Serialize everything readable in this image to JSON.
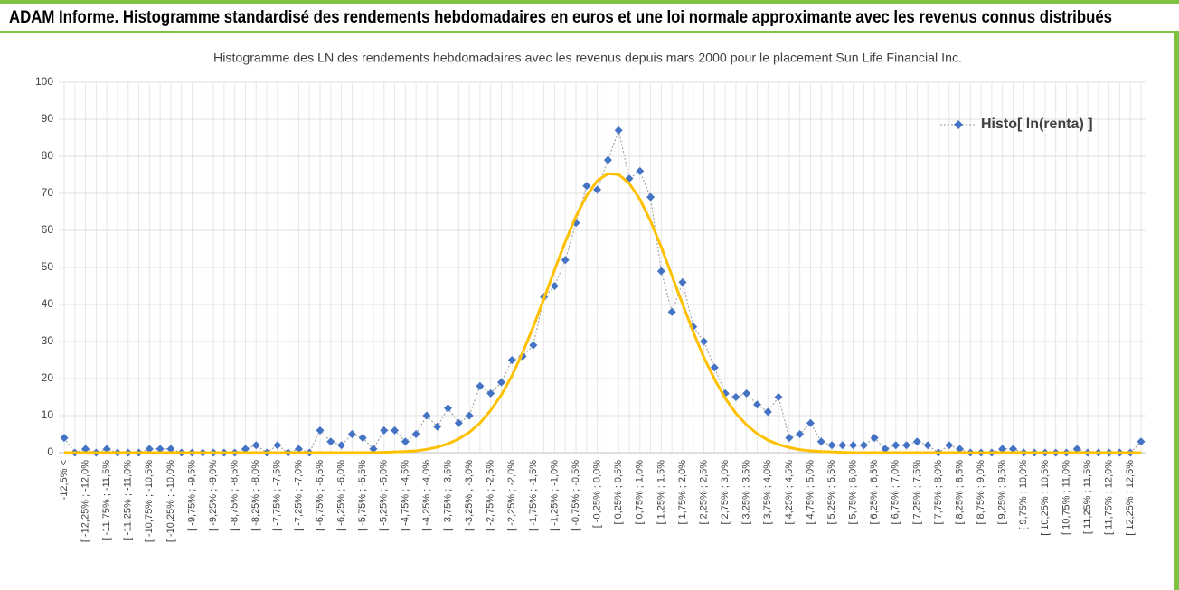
{
  "header": {
    "title": "ADAM Informe. Histogramme standardisé des rendements hebdomadaires en euros et une loi normale approximante avec les revenus connus distribués"
  },
  "chart_data": {
    "type": "line",
    "title": "Histogramme des LN des rendements hebdomadaires avec les revenus depuis mars 2000 pour le placement Sun Life Financial Inc.",
    "categories": [
      "-12,5% <",
      null,
      "[ -12,25% ; -12,0%",
      null,
      "[ -11,75% ; -11,5%",
      null,
      "[ -11,25% ; -11,0%",
      null,
      "[ -10,75% ; -10,5%",
      null,
      "[ -10,25% ; -10,0%",
      null,
      "[ -9,75% ; -9,5%",
      null,
      "[ -9,25% ; -9,0%",
      null,
      "[ -8,75% ; -8,5%",
      null,
      "[ -8,25% ; -8,0%",
      null,
      "[ -7,75% ; -7,5%",
      null,
      "[ -7,25% ; -7,0%",
      null,
      "[ -6,75% ; -6,5%",
      null,
      "[ -6,25% ; -6,0%",
      null,
      "[ -5,75% ; -5,5%",
      null,
      "[ -5,25% ; -5,0%",
      null,
      "[ -4,75% ; -4,5%",
      null,
      "[ -4,25% ; -4,0%",
      null,
      "[ -3,75% ; -3,5%",
      null,
      "[ -3,25% ; -3,0%",
      null,
      "[ -2,75% ; -2,5%",
      null,
      "[ -2,25% ; -2,0%",
      null,
      "[ -1,75% ; -1,5%",
      null,
      "[ -1,25% ; -1,0%",
      null,
      "[ -0,75% ; -0,5%",
      null,
      "[ -0,25% ; 0,0%",
      null,
      "[ 0,25% ; 0,5%",
      null,
      "[ 0,75% ; 1,0%",
      null,
      "[ 1,25% ; 1,5%",
      null,
      "[ 1,75% ; 2,0%",
      null,
      "[ 2,25% ; 2,5%",
      null,
      "[ 2,75% ; 3,0%",
      null,
      "[ 3,25% ; 3,5%",
      null,
      "[ 3,75% ; 4,0%",
      null,
      "[ 4,25% ; 4,5%",
      null,
      "[ 4,75% ; 5,0%",
      null,
      "[ 5,25% ; 5,5%",
      null,
      "[ 5,75% ; 6,0%",
      null,
      "[ 6,25% ; 6,5%",
      null,
      "[ 6,75% ; 7,0%",
      null,
      "[ 7,25% ; 7,5%",
      null,
      "[ 7,75% ; 8,0%",
      null,
      "[ 8,25% ; 8,5%",
      null,
      "[ 8,75% ; 9,0%",
      null,
      "[ 9,25% ; 9,5%",
      null,
      "[ 9,75% ; 10,0%",
      null,
      "[ 10,25% ; 10,5%",
      null,
      "[ 10,75% ; 11,0%",
      null,
      "[ 11,25% ; 11,5%",
      null,
      "[ 11,75% ; 12,0%",
      null,
      "[ 12,25% ; 12,5%",
      null
    ],
    "series": [
      {
        "name": "Histo[ ln(renta) ]",
        "color": "#4472c4",
        "line_color": "#a6a6a6",
        "marker": "diamond",
        "values": [
          4,
          0,
          1,
          0,
          1,
          0,
          0,
          0,
          1,
          1,
          1,
          0,
          0,
          0,
          0,
          0,
          0,
          1,
          2,
          0,
          2,
          0,
          1,
          0,
          6,
          3,
          2,
          5,
          4,
          1,
          6,
          6,
          3,
          5,
          10,
          7,
          12,
          8,
          10,
          18,
          16,
          19,
          25,
          26,
          29,
          42,
          45,
          52,
          62,
          72,
          71,
          79,
          87,
          74,
          76,
          69,
          49,
          38,
          46,
          34,
          30,
          23,
          16,
          15,
          16,
          13,
          11,
          15,
          4,
          5,
          8,
          3,
          2,
          2,
          2,
          2,
          4,
          1,
          2,
          2,
          3,
          2,
          0,
          2,
          1,
          0,
          0,
          0,
          1,
          1,
          0,
          0,
          0,
          0,
          0,
          1,
          0,
          0,
          0,
          0,
          0,
          3
        ]
      },
      {
        "color": "#ffc000",
        "values": [
          0,
          0,
          0,
          0,
          0,
          0,
          0,
          0,
          0,
          0,
          0,
          0,
          0,
          0,
          0,
          0,
          0,
          0,
          0,
          0,
          0,
          0,
          0,
          0,
          0,
          0,
          0,
          0,
          0,
          0,
          0.1,
          0.2,
          0.3,
          0.5,
          0.9,
          1.5,
          2.4,
          3.7,
          5.5,
          8.0,
          11.4,
          15.6,
          20.8,
          27.0,
          34.0,
          41.6,
          49.4,
          56.9,
          63.8,
          69.4,
          73.4,
          75.3,
          75.1,
          72.7,
          68.4,
          62.5,
          55.5,
          47.8,
          40.1,
          32.6,
          25.7,
          19.8,
          14.7,
          10.6,
          7.5,
          5.1,
          3.4,
          2.2,
          1.4,
          0.8,
          0.5,
          0.3,
          0.2,
          0.1,
          0,
          0,
          0,
          0,
          0,
          0,
          0,
          0,
          0,
          0,
          0,
          0,
          0,
          0,
          0,
          0,
          0,
          0,
          0,
          0,
          0,
          0,
          0,
          0,
          0,
          0,
          0,
          0
        ]
      }
    ],
    "ylim": [
      0,
      100
    ],
    "yticks": [
      0,
      10,
      20,
      30,
      40,
      50,
      60,
      70,
      80,
      90,
      100
    ],
    "grid": true,
    "legend": "upper right"
  }
}
